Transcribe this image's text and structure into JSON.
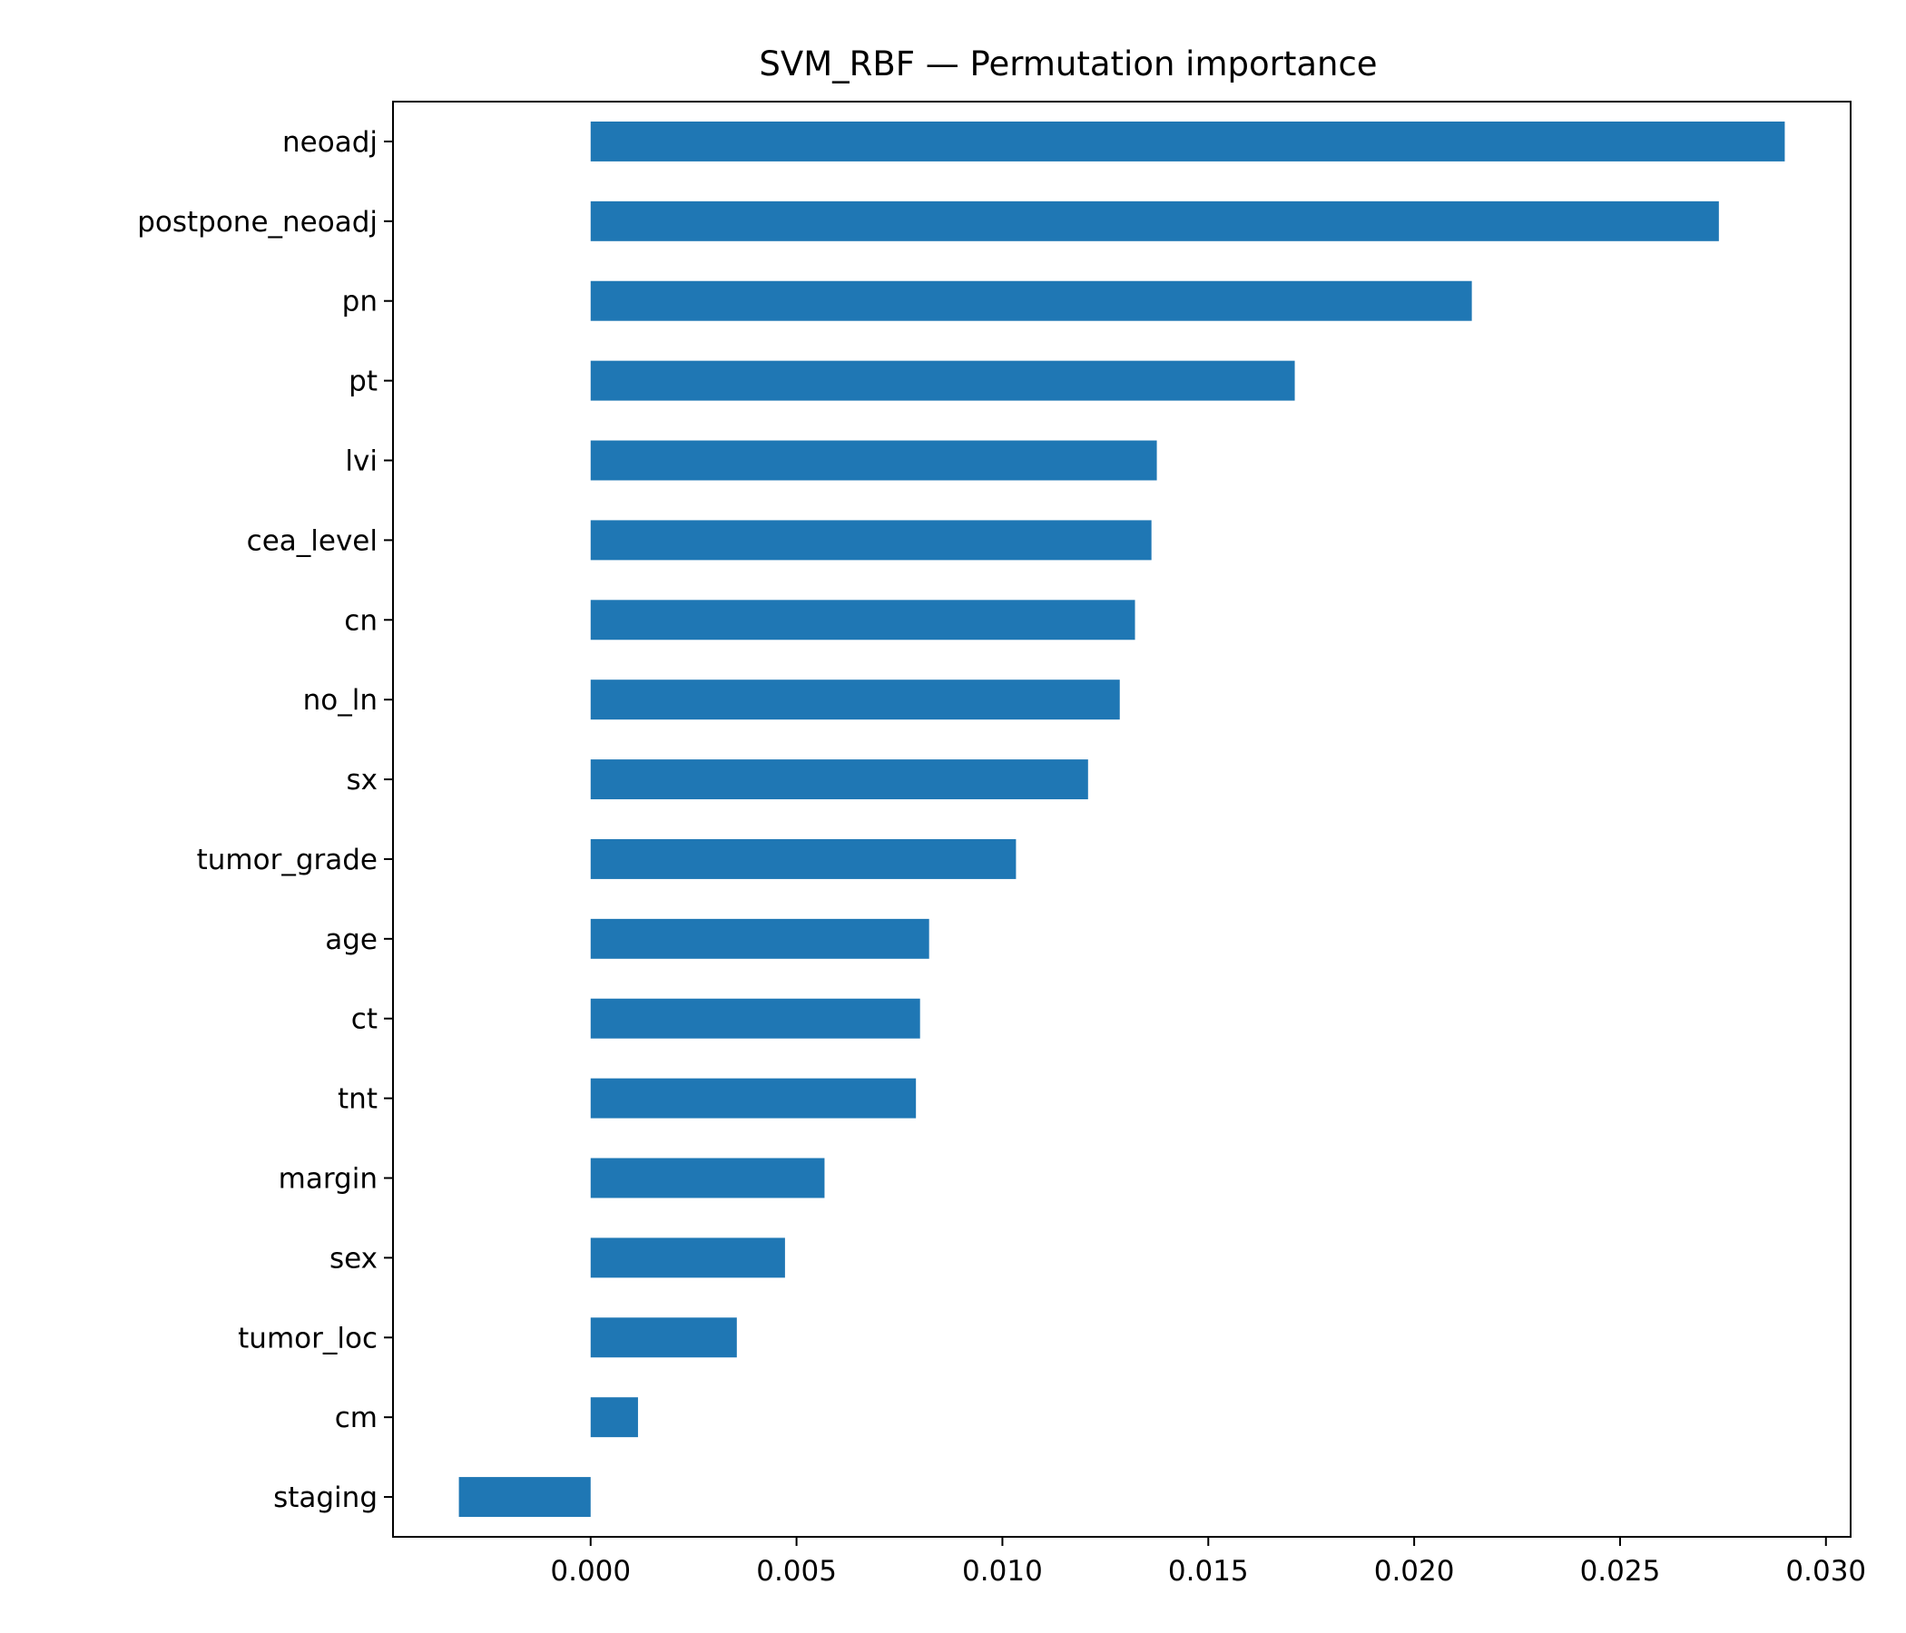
{
  "chart_data": {
    "type": "bar",
    "orientation": "horizontal",
    "title": "SVM_RBF — Permutation importance",
    "xlabel": "",
    "ylabel": "",
    "categories": [
      "neoadj",
      "postpone_neoadj",
      "pn",
      "pt",
      "lvi",
      "cea_level",
      "cn",
      "no_ln",
      "sx",
      "tumor_grade",
      "age",
      "ct",
      "tnt",
      "margin",
      "sex",
      "tumor_loc",
      "cm",
      "staging"
    ],
    "values": [
      0.029,
      0.0274,
      0.0214,
      0.0171,
      0.01375,
      0.01362,
      0.01322,
      0.01285,
      0.01208,
      0.01033,
      0.00822,
      0.008,
      0.0079,
      0.00568,
      0.00472,
      0.00355,
      0.00115,
      -0.0032
    ],
    "xlim": [
      -0.0048,
      0.0306
    ],
    "xticks": [
      "0.000",
      "0.005",
      "0.010",
      "0.015",
      "0.020",
      "0.025",
      "0.030"
    ],
    "xtick_values": [
      0.0,
      0.005,
      0.01,
      0.015,
      0.02,
      0.025,
      0.03
    ],
    "grid": false,
    "legend": "none",
    "colors": {
      "bar": "#1f77b4",
      "axes": "#000000"
    }
  }
}
